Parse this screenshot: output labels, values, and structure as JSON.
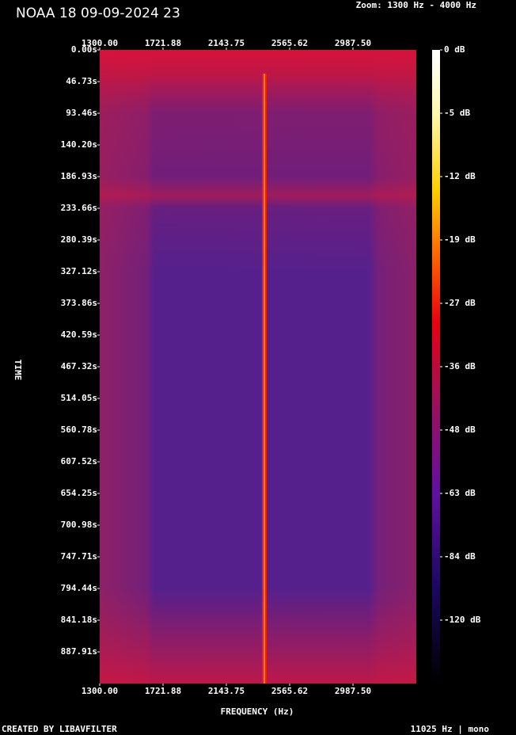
{
  "chart_data": {
    "type": "spectrogram",
    "title": "NOAA 18 09-09-2024 23",
    "zoom_label": "Zoom: 1300 Hz - 4000 Hz",
    "x_label": "FREQUENCY (Hz)",
    "y_label": "TIME",
    "footer_left": "CREATED BY LIBAVFILTER",
    "footer_right": "11025 Hz | mono",
    "xlim": [
      1300,
      3409.38
    ],
    "xticks": [
      {
        "value": 1300,
        "label": "1300.00"
      },
      {
        "value": 1721.88,
        "label": "1721.88"
      },
      {
        "value": 2143.75,
        "label": "2143.75"
      },
      {
        "value": 2565.62,
        "label": "2565.62"
      },
      {
        "value": 2987.5,
        "label": "2987.50"
      }
    ],
    "ylim": [
      0,
      934.6
    ],
    "yticks": [
      {
        "value": 0,
        "label": "0.00s"
      },
      {
        "value": 46.73,
        "label": "46.73s"
      },
      {
        "value": 93.46,
        "label": "93.46s"
      },
      {
        "value": 140.2,
        "label": "140.20s"
      },
      {
        "value": 186.93,
        "label": "186.93s"
      },
      {
        "value": 233.66,
        "label": "233.66s"
      },
      {
        "value": 280.39,
        "label": "280.39s"
      },
      {
        "value": 327.12,
        "label": "327.12s"
      },
      {
        "value": 373.86,
        "label": "373.86s"
      },
      {
        "value": 420.59,
        "label": "420.59s"
      },
      {
        "value": 467.32,
        "label": "467.32s"
      },
      {
        "value": 514.05,
        "label": "514.05s"
      },
      {
        "value": 560.78,
        "label": "560.78s"
      },
      {
        "value": 607.52,
        "label": "607.52s"
      },
      {
        "value": 654.25,
        "label": "654.25s"
      },
      {
        "value": 700.98,
        "label": "700.98s"
      },
      {
        "value": 747.71,
        "label": "747.71s"
      },
      {
        "value": 794.44,
        "label": "794.44s"
      },
      {
        "value": 841.18,
        "label": "841.18s"
      },
      {
        "value": 887.91,
        "label": "887.91s"
      }
    ],
    "cticks": [
      {
        "value": 0,
        "label": "0 dB"
      },
      {
        "value": -5,
        "label": "-5 dB"
      },
      {
        "value": -12,
        "label": "-12 dB"
      },
      {
        "value": -19,
        "label": "-19 dB"
      },
      {
        "value": -27,
        "label": "-27 dB"
      },
      {
        "value": -36,
        "label": "-36 dB"
      },
      {
        "value": -48,
        "label": "-48 dB"
      },
      {
        "value": -63,
        "label": "-63 dB"
      },
      {
        "value": -84,
        "label": "-84 dB"
      },
      {
        "value": -120,
        "label": "-120 dB"
      }
    ]
  }
}
